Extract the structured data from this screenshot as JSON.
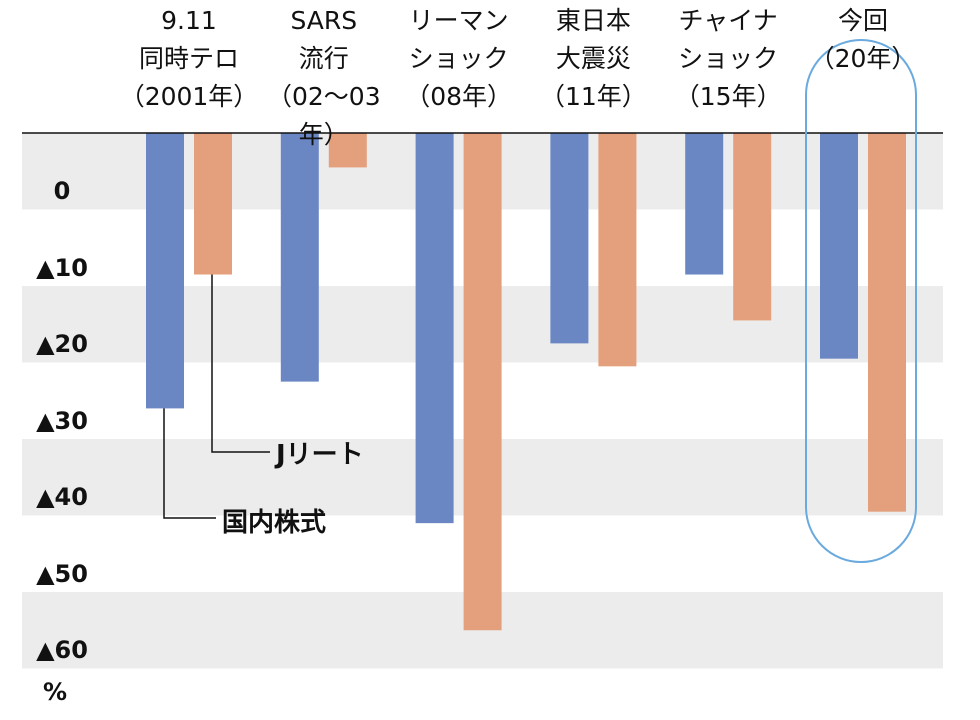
{
  "chart_data": {
    "type": "bar",
    "categories": [
      [
        "9.11",
        "同時テロ",
        "（2001年）"
      ],
      [
        "SARS",
        "流行",
        "（02～03年）"
      ],
      [
        "リーマン",
        "ショック",
        "（08年）"
      ],
      [
        "東日本",
        "大震災",
        "（11年）"
      ],
      [
        "チャイナ",
        "ショック",
        "（15年）"
      ],
      [
        "今回",
        "（20年）",
        ""
      ]
    ],
    "series": [
      {
        "name": "国内株式",
        "color": "#6a87c4",
        "values": [
          -36,
          -32.5,
          -51,
          -27.5,
          -18.5,
          -29.5
        ]
      },
      {
        "name": "Jリート",
        "color": "#e4a07c",
        "values": [
          -18.5,
          -4.5,
          -65,
          -30.5,
          -24.5,
          -49.5
        ]
      }
    ],
    "y_tick_labels": [
      "0",
      "▲10",
      "▲20",
      "▲30",
      "▲40",
      "▲50",
      "▲60"
    ],
    "y_unit": "%",
    "ylim": [
      -70,
      0
    ],
    "highlight_category": 5,
    "highlight_color": "#6aaade",
    "band_color": "#ececec",
    "grid": false,
    "legend": "inline annotations"
  }
}
